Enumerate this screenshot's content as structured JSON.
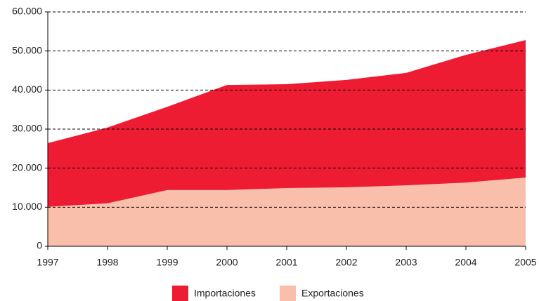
{
  "chart_data": {
    "type": "area",
    "categories": [
      "1997",
      "1998",
      "1999",
      "2000",
      "2001",
      "2002",
      "2003",
      "2004",
      "2005"
    ],
    "series": [
      {
        "name": "Importaciones",
        "color": "#ed1c33",
        "values": [
          16300,
          19400,
          21300,
          26900,
          26600,
          27500,
          28800,
          32700,
          35200
        ]
      },
      {
        "name": "Exportaciones",
        "color": "#f9bfaa",
        "values": [
          10100,
          11000,
          14400,
          14400,
          14900,
          15100,
          15600,
          16300,
          17600
        ]
      }
    ],
    "stacked": true,
    "ylim": [
      0,
      60000
    ],
    "yticks": [
      0,
      {
        "value": 10000,
        "label": "10.000"
      },
      {
        "value": 20000,
        "label": "20.000"
      },
      {
        "value": 30000,
        "label": "30.000"
      },
      {
        "value": 40000,
        "label": "40.000"
      },
      {
        "value": 50000,
        "label": "50.000"
      },
      {
        "value": 60000,
        "label": "60.000"
      }
    ],
    "grid": true,
    "legend": "bottom"
  }
}
